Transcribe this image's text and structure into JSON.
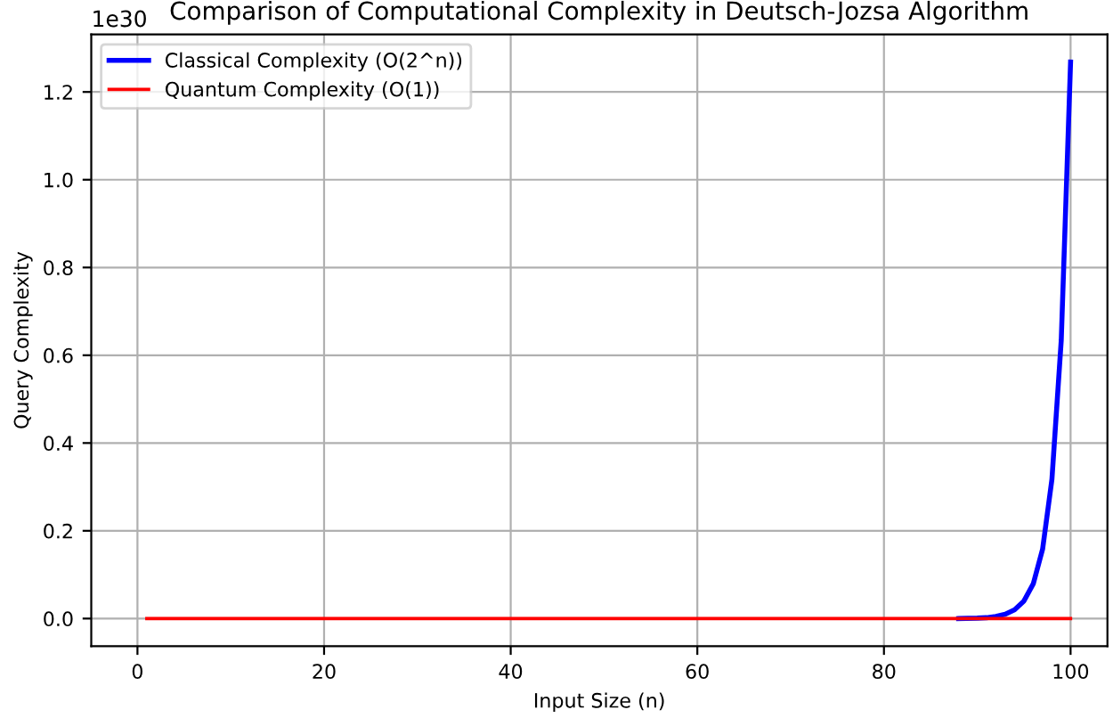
{
  "chart_data": {
    "type": "line",
    "title": "Comparison of Computational Complexity in Deutsch-Jozsa Algorithm",
    "xlabel": "Input Size (n)",
    "ylabel": "Query Complexity",
    "series": [
      {
        "name": "Classical Complexity (O(2^n))",
        "color": "#0000ff",
        "x": [
          88,
          90,
          91,
          92,
          93,
          94,
          95,
          96,
          97,
          98,
          99,
          100
        ],
        "values": [
          0.0,
          0.001,
          0.002,
          0.005,
          0.01,
          0.02,
          0.04,
          0.079,
          0.158,
          0.317,
          0.634,
          1.268
        ]
      },
      {
        "name": "Quantum Complexity (O(1))",
        "color": "#ff0000",
        "x": [
          1,
          100
        ],
        "values": [
          0.0,
          0.0
        ]
      }
    ],
    "xlim": [
      -4.95,
      103.95
    ],
    "xticks": [
      0,
      20,
      40,
      60,
      80,
      100
    ],
    "ylim": [
      -0.063,
      1.331
    ],
    "yticks": [
      {
        "value": 0.0,
        "label": "0.0"
      },
      {
        "value": 0.2,
        "label": "0.2"
      },
      {
        "value": 0.4,
        "label": "0.4"
      },
      {
        "value": 0.6,
        "label": "0.6"
      },
      {
        "value": 0.8,
        "label": "0.8"
      },
      {
        "value": 1.0,
        "label": "1.0"
      },
      {
        "value": 1.2,
        "label": "1.2"
      }
    ],
    "annotations": [
      "1e30"
    ],
    "grid": true,
    "legend": "top left",
    "line_style": "solid",
    "marker": "none"
  }
}
